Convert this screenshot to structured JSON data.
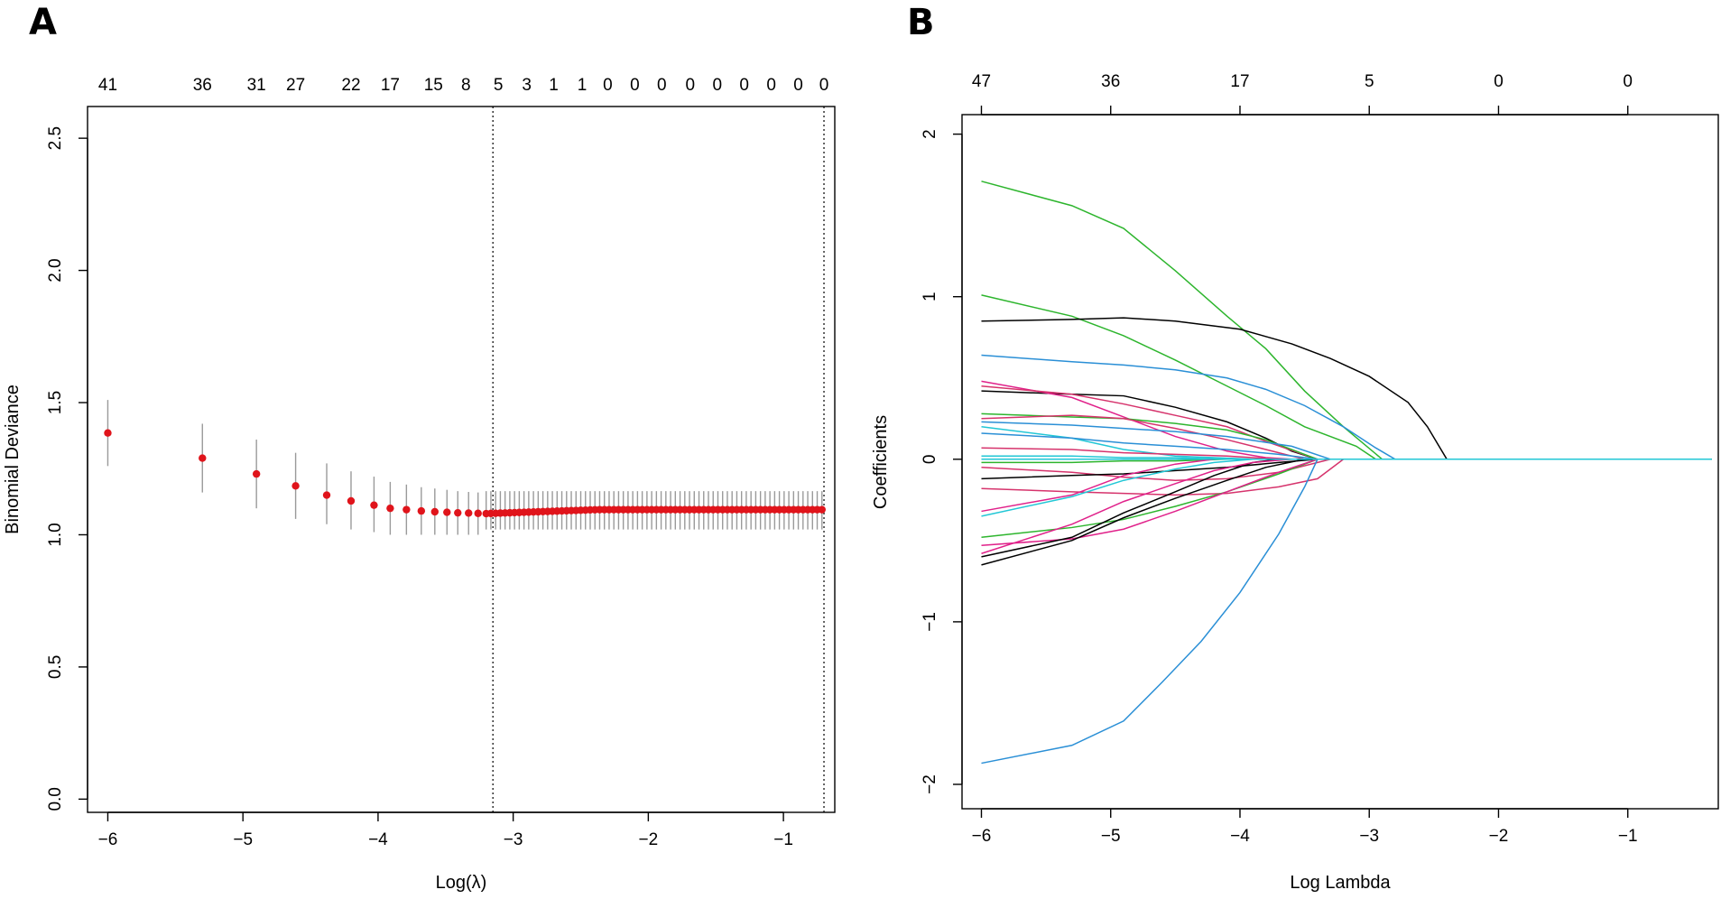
{
  "chart_data": [
    {
      "panel": "A",
      "type": "scatter",
      "subtype": "cross-validation curve with error bars",
      "xlabel": "Log(λ)",
      "ylabel": "Binomial Deviance",
      "xlim": [
        -6.15,
        -0.62
      ],
      "ylim": [
        -0.05,
        2.62
      ],
      "x_ticks": [
        -6,
        -5,
        -4,
        -3,
        -2,
        -1
      ],
      "y_ticks": [
        0.0,
        0.5,
        1.0,
        1.5,
        2.0,
        2.5
      ],
      "y_tick_labels": [
        "0.0",
        "0.5",
        "1.0",
        "1.5",
        "2.0",
        "2.5"
      ],
      "top_axis_labels": [
        "41",
        "36",
        "31",
        "27",
        "22",
        "17",
        "15",
        "8",
        "5",
        "3",
        "1",
        "1",
        "0",
        "0",
        "0",
        "0",
        "0",
        "0",
        "0",
        "0",
        "0"
      ],
      "top_axis_positions": [
        -6.0,
        -5.3,
        -4.9,
        -4.61,
        -4.2,
        -3.91,
        -3.59,
        -3.35,
        -3.11,
        -2.9,
        -2.7,
        -2.49,
        -2.3,
        -2.1,
        -1.9,
        -1.69,
        -1.49,
        -1.29,
        -1.09,
        -0.89,
        -0.7
      ],
      "vlines": [
        -3.15,
        -0.7
      ],
      "points": [
        {
          "x": -6.0,
          "y": 1.385,
          "lo": 1.26,
          "hi": 1.51
        },
        {
          "x": -5.3,
          "y": 1.29,
          "lo": 1.16,
          "hi": 1.42
        },
        {
          "x": -4.9,
          "y": 1.23,
          "lo": 1.1,
          "hi": 1.36
        },
        {
          "x": -4.61,
          "y": 1.185,
          "lo": 1.06,
          "hi": 1.31
        },
        {
          "x": -4.38,
          "y": 1.15,
          "lo": 1.04,
          "hi": 1.27
        },
        {
          "x": -4.2,
          "y": 1.128,
          "lo": 1.02,
          "hi": 1.24
        },
        {
          "x": -4.03,
          "y": 1.112,
          "lo": 1.01,
          "hi": 1.22
        },
        {
          "x": -3.91,
          "y": 1.1,
          "lo": 1.0,
          "hi": 1.2
        },
        {
          "x": -3.79,
          "y": 1.095,
          "lo": 1.0,
          "hi": 1.19
        },
        {
          "x": -3.68,
          "y": 1.09,
          "lo": 1.0,
          "hi": 1.18
        },
        {
          "x": -3.58,
          "y": 1.087,
          "lo": 1.0,
          "hi": 1.175
        },
        {
          "x": -3.49,
          "y": 1.085,
          "lo": 1.0,
          "hi": 1.17
        },
        {
          "x": -3.41,
          "y": 1.083,
          "lo": 1.0,
          "hi": 1.165
        },
        {
          "x": -3.33,
          "y": 1.082,
          "lo": 1.0,
          "hi": 1.162
        },
        {
          "x": -3.26,
          "y": 1.081,
          "lo": 1.0,
          "hi": 1.16
        }
      ],
      "flat_region": {
        "x_start": -3.2,
        "x_end": -0.7,
        "step": 0.035,
        "y_start": 1.08,
        "y_end": 1.095,
        "lo": 1.02,
        "hi": 1.165
      },
      "point_color": "#e0141b",
      "errorbar_color": "#9a9a9a"
    },
    {
      "panel": "B",
      "type": "line",
      "subtype": "coefficient paths",
      "xlabel": "Log Lambda",
      "ylabel": "Coefficients",
      "xlim": [
        -6.15,
        -0.3
      ],
      "ylim": [
        -2.15,
        2.12
      ],
      "x_ticks": [
        -6,
        -5,
        -4,
        -3,
        -2,
        -1
      ],
      "y_ticks": [
        -2,
        -1,
        0,
        1,
        2
      ],
      "y_tick_labels": [
        "−2",
        "−1",
        "0",
        "1",
        "2"
      ],
      "top_axis_labels": [
        "47",
        "36",
        "17",
        "5",
        "0",
        "0"
      ],
      "top_axis_positions": [
        -6,
        -5,
        -4,
        -3,
        -2,
        -1
      ],
      "series": [
        {
          "color": "#2db52d",
          "x": [
            -6,
            -5.3,
            -4.9,
            -4.5,
            -4.1,
            -3.8,
            -3.5,
            -3.2,
            -2.9
          ],
          "y": [
            1.71,
            1.56,
            1.42,
            1.16,
            0.88,
            0.68,
            0.42,
            0.2,
            0
          ]
        },
        {
          "color": "#2db52d",
          "x": [
            -6,
            -5.3,
            -4.9,
            -4.5,
            -4.1,
            -3.8,
            -3.5,
            -3.1,
            -2.95
          ],
          "y": [
            1.01,
            0.88,
            0.76,
            0.61,
            0.45,
            0.33,
            0.2,
            0.08,
            0
          ]
        },
        {
          "color": "#000000",
          "x": [
            -6,
            -5.3,
            -4.9,
            -4.5,
            -4.0,
            -3.6,
            -3.3,
            -3.0,
            -2.7,
            -2.55,
            -2.4
          ],
          "y": [
            0.85,
            0.86,
            0.87,
            0.85,
            0.8,
            0.71,
            0.62,
            0.51,
            0.35,
            0.2,
            0
          ]
        },
        {
          "color": "#2a8fd6",
          "x": [
            -6,
            -5.3,
            -4.9,
            -4.5,
            -4.1,
            -3.8,
            -3.5,
            -3.2,
            -2.95,
            -2.8
          ],
          "y": [
            0.64,
            0.6,
            0.58,
            0.55,
            0.5,
            0.43,
            0.33,
            0.2,
            0.07,
            0
          ]
        },
        {
          "color": "#000000",
          "x": [
            -6,
            -5.3,
            -4.9,
            -4.5,
            -4.1,
            -3.8,
            -3.6,
            -3.4
          ],
          "y": [
            0.42,
            0.4,
            0.39,
            0.32,
            0.23,
            0.13,
            0.05,
            0
          ]
        },
        {
          "color": "#e0218a",
          "x": [
            -6,
            -5.3,
            -4.9,
            -4.5,
            -4.1,
            -3.8,
            -3.6
          ],
          "y": [
            0.48,
            0.38,
            0.26,
            0.14,
            0.05,
            0.01,
            0
          ]
        },
        {
          "color": "#d6336c",
          "x": [
            -6,
            -5.3,
            -4.9,
            -4.5,
            -4.1,
            -3.8,
            -3.4
          ],
          "y": [
            0.45,
            0.4,
            0.34,
            0.27,
            0.2,
            0.11,
            0
          ]
        },
        {
          "color": "#2db52d",
          "x": [
            -6,
            -5.3,
            -4.9,
            -4.5,
            -4.1,
            -3.8,
            -3.4
          ],
          "y": [
            0.28,
            0.26,
            0.25,
            0.22,
            0.18,
            0.12,
            0
          ]
        },
        {
          "color": "#d6336c",
          "x": [
            -6,
            -5.3,
            -4.9,
            -4.5,
            -4.1,
            -3.8,
            -3.5
          ],
          "y": [
            0.25,
            0.27,
            0.25,
            0.19,
            0.12,
            0.06,
            0
          ]
        },
        {
          "color": "#2a8fd6",
          "x": [
            -6,
            -5.3,
            -4.9,
            -4.5,
            -4.1,
            -3.6,
            -3.3
          ],
          "y": [
            0.23,
            0.21,
            0.19,
            0.17,
            0.14,
            0.08,
            0
          ]
        },
        {
          "color": "#22c7d6",
          "x": [
            -6,
            -5.3,
            -4.9,
            -4.5,
            -4.2,
            -3.9,
            -3.7
          ],
          "y": [
            0.2,
            0.13,
            0.06,
            0.02,
            0.01,
            0.0,
            0
          ]
        },
        {
          "color": "#2a8fd6",
          "x": [
            -6,
            -5.3,
            -4.9,
            -4.5,
            -4.1,
            -3.7,
            -3.4
          ],
          "y": [
            0.16,
            0.13,
            0.1,
            0.08,
            0.06,
            0.03,
            0
          ]
        },
        {
          "color": "#d6336c",
          "x": [
            -6,
            -5.3,
            -4.9,
            -4.5,
            -4.1,
            -3.7
          ],
          "y": [
            0.07,
            0.06,
            0.04,
            0.03,
            0.02,
            0
          ]
        },
        {
          "color": "#22c7d6",
          "x": [
            -6,
            -5.3,
            -4.9,
            -4.5,
            -4.1,
            -3.8
          ],
          "y": [
            0.02,
            0.02,
            0.01,
            0.01,
            0.0,
            0
          ]
        },
        {
          "color": "#2db52d",
          "x": [
            -6,
            -5.3,
            -4.9,
            -4.5,
            -4.1,
            -3.8
          ],
          "y": [
            -0.02,
            -0.02,
            -0.01,
            -0.01,
            0.0,
            0
          ]
        },
        {
          "color": "#d6336c",
          "x": [
            -6,
            -5.3,
            -4.9,
            -4.5,
            -4.1,
            -3.7,
            -3.3
          ],
          "y": [
            -0.05,
            -0.08,
            -0.11,
            -0.13,
            -0.12,
            -0.08,
            0
          ]
        },
        {
          "color": "#000000",
          "x": [
            -6,
            -5.3,
            -4.9,
            -4.5,
            -4.1,
            -3.7,
            -3.4
          ],
          "y": [
            -0.12,
            -0.1,
            -0.09,
            -0.07,
            -0.05,
            -0.02,
            0
          ]
        },
        {
          "color": "#d6336c",
          "x": [
            -6,
            -5.3,
            -4.9,
            -4.5,
            -4.1,
            -3.7,
            -3.4,
            -3.2
          ],
          "y": [
            -0.18,
            -0.2,
            -0.21,
            -0.22,
            -0.21,
            -0.17,
            -0.12,
            0
          ]
        },
        {
          "color": "#22c7d6",
          "x": [
            -6,
            -5.3,
            -4.9,
            -4.5,
            -4.2,
            -3.9,
            -3.6
          ],
          "y": [
            -0.35,
            -0.23,
            -0.13,
            -0.06,
            -0.02,
            0.0,
            0
          ]
        },
        {
          "color": "#e0218a",
          "x": [
            -6,
            -5.3,
            -4.9,
            -4.5,
            -4.2,
            -3.9,
            -3.6
          ],
          "y": [
            -0.32,
            -0.22,
            -0.1,
            -0.03,
            0.0,
            0.0,
            0
          ]
        },
        {
          "color": "#2db52d",
          "x": [
            -6,
            -5.3,
            -4.9,
            -4.5,
            -4.1,
            -3.7,
            -3.4
          ],
          "y": [
            -0.48,
            -0.42,
            -0.37,
            -0.29,
            -0.2,
            -0.09,
            0
          ]
        },
        {
          "color": "#e0218a",
          "x": [
            -6,
            -5.3,
            -4.9,
            -4.5,
            -4.1,
            -3.7,
            -3.4
          ],
          "y": [
            -0.53,
            -0.49,
            -0.43,
            -0.32,
            -0.2,
            -0.08,
            0
          ]
        },
        {
          "color": "#000000",
          "x": [
            -6,
            -5.3,
            -4.9,
            -4.5,
            -4.2,
            -3.9,
            -3.7
          ],
          "y": [
            -0.6,
            -0.48,
            -0.33,
            -0.2,
            -0.1,
            -0.02,
            0
          ]
        },
        {
          "color": "#000000",
          "x": [
            -6,
            -5.3,
            -4.9,
            -4.5,
            -4.1,
            -3.8,
            -3.5
          ],
          "y": [
            -0.65,
            -0.5,
            -0.36,
            -0.24,
            -0.13,
            -0.05,
            0
          ]
        },
        {
          "color": "#e0218a",
          "x": [
            -6,
            -5.3,
            -4.9,
            -4.5,
            -4.2,
            -3.9,
            -3.6
          ],
          "y": [
            -0.58,
            -0.4,
            -0.26,
            -0.15,
            -0.07,
            -0.02,
            0
          ]
        },
        {
          "color": "#2a8fd6",
          "x": [
            -6,
            -5.3,
            -4.9,
            -4.6,
            -4.3,
            -4.0,
            -3.7,
            -3.5,
            -3.4
          ],
          "y": [
            -1.87,
            -1.76,
            -1.61,
            -1.37,
            -1.12,
            -0.82,
            -0.46,
            -0.17,
            0
          ]
        },
        {
          "color": "#2db52d",
          "x": [
            -6,
            -0.35
          ],
          "y": [
            0,
            0
          ]
        },
        {
          "color": "#22c7d6",
          "x": [
            -6,
            -0.35
          ],
          "y": [
            0,
            0
          ]
        }
      ]
    }
  ],
  "panels": {
    "a": {
      "letter": "A"
    },
    "b": {
      "letter": "B"
    }
  }
}
